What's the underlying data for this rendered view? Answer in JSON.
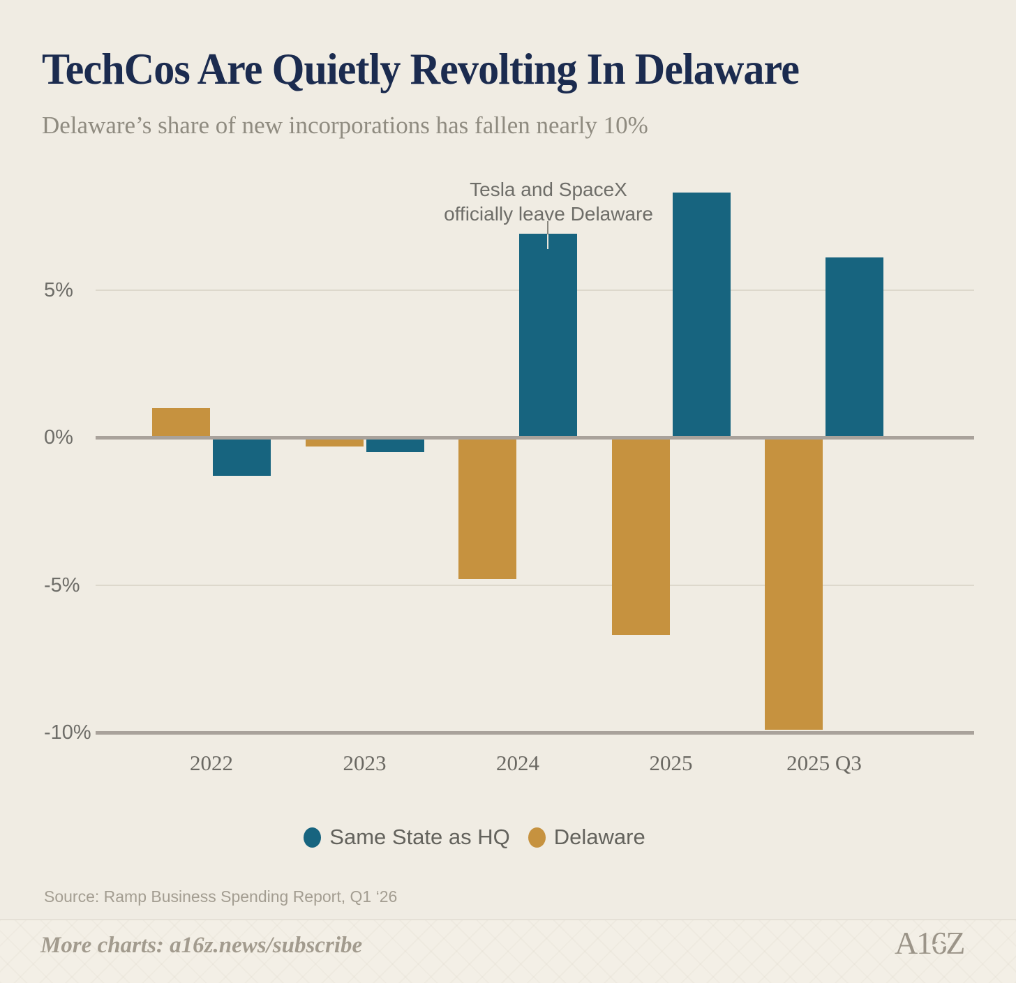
{
  "header": {
    "title": "TechCos Are Quietly Revolting In Delaware",
    "subtitle": "Delaware’s share of new incorporations has fallen nearly 10%"
  },
  "chart_data": {
    "type": "bar",
    "title": "TechCos Are Quietly Revolting In Delaware",
    "subtitle": "Delaware’s share of new incorporations has fallen nearly 10%",
    "categories": [
      "2022",
      "2023",
      "2024",
      "2025",
      "2025 Q3"
    ],
    "series": [
      {
        "name": "Delaware",
        "color": "#c6923f",
        "values": [
          1.0,
          -0.3,
          -4.8,
          -6.7,
          -9.9
        ]
      },
      {
        "name": "Same State as HQ",
        "color": "#17647f",
        "values": [
          -1.3,
          -0.5,
          6.9,
          8.3,
          6.1
        ]
      }
    ],
    "xlabel": "",
    "ylabel": "",
    "ylim": [
      -10.6,
      9.5
    ],
    "yticks": [
      5,
      0,
      -5,
      -10
    ],
    "ytick_labels": [
      "5%",
      "0%",
      "-5%",
      "-10%"
    ],
    "grid": "horizontal gridlines at 5% and -5%; heavy axis lines at 0% and -10%",
    "legend_position": "bottom center",
    "annotation": {
      "line1": "Tesla and SpaceX",
      "line2": "officially leave Delaware",
      "target": "2024 Same State as HQ bar"
    },
    "legend": [
      {
        "label": "Same State as HQ",
        "color": "#17647f"
      },
      {
        "label": "Delaware",
        "color": "#c6923f"
      }
    ]
  },
  "colors": {
    "background": "#f0ece3",
    "title_navy": "#1b2b4f",
    "teal": "#17647f",
    "gold": "#c6923f",
    "axis_gray": "#a9a29b",
    "gridline": "#ddd8cc",
    "footer_background": "#f3efe6"
  },
  "source": "Source: Ramp Business Spending Report, Q1 ‘26",
  "footer": {
    "more_charts": "More charts: a16z.news/subscribe",
    "logo_text": "A16Z"
  }
}
